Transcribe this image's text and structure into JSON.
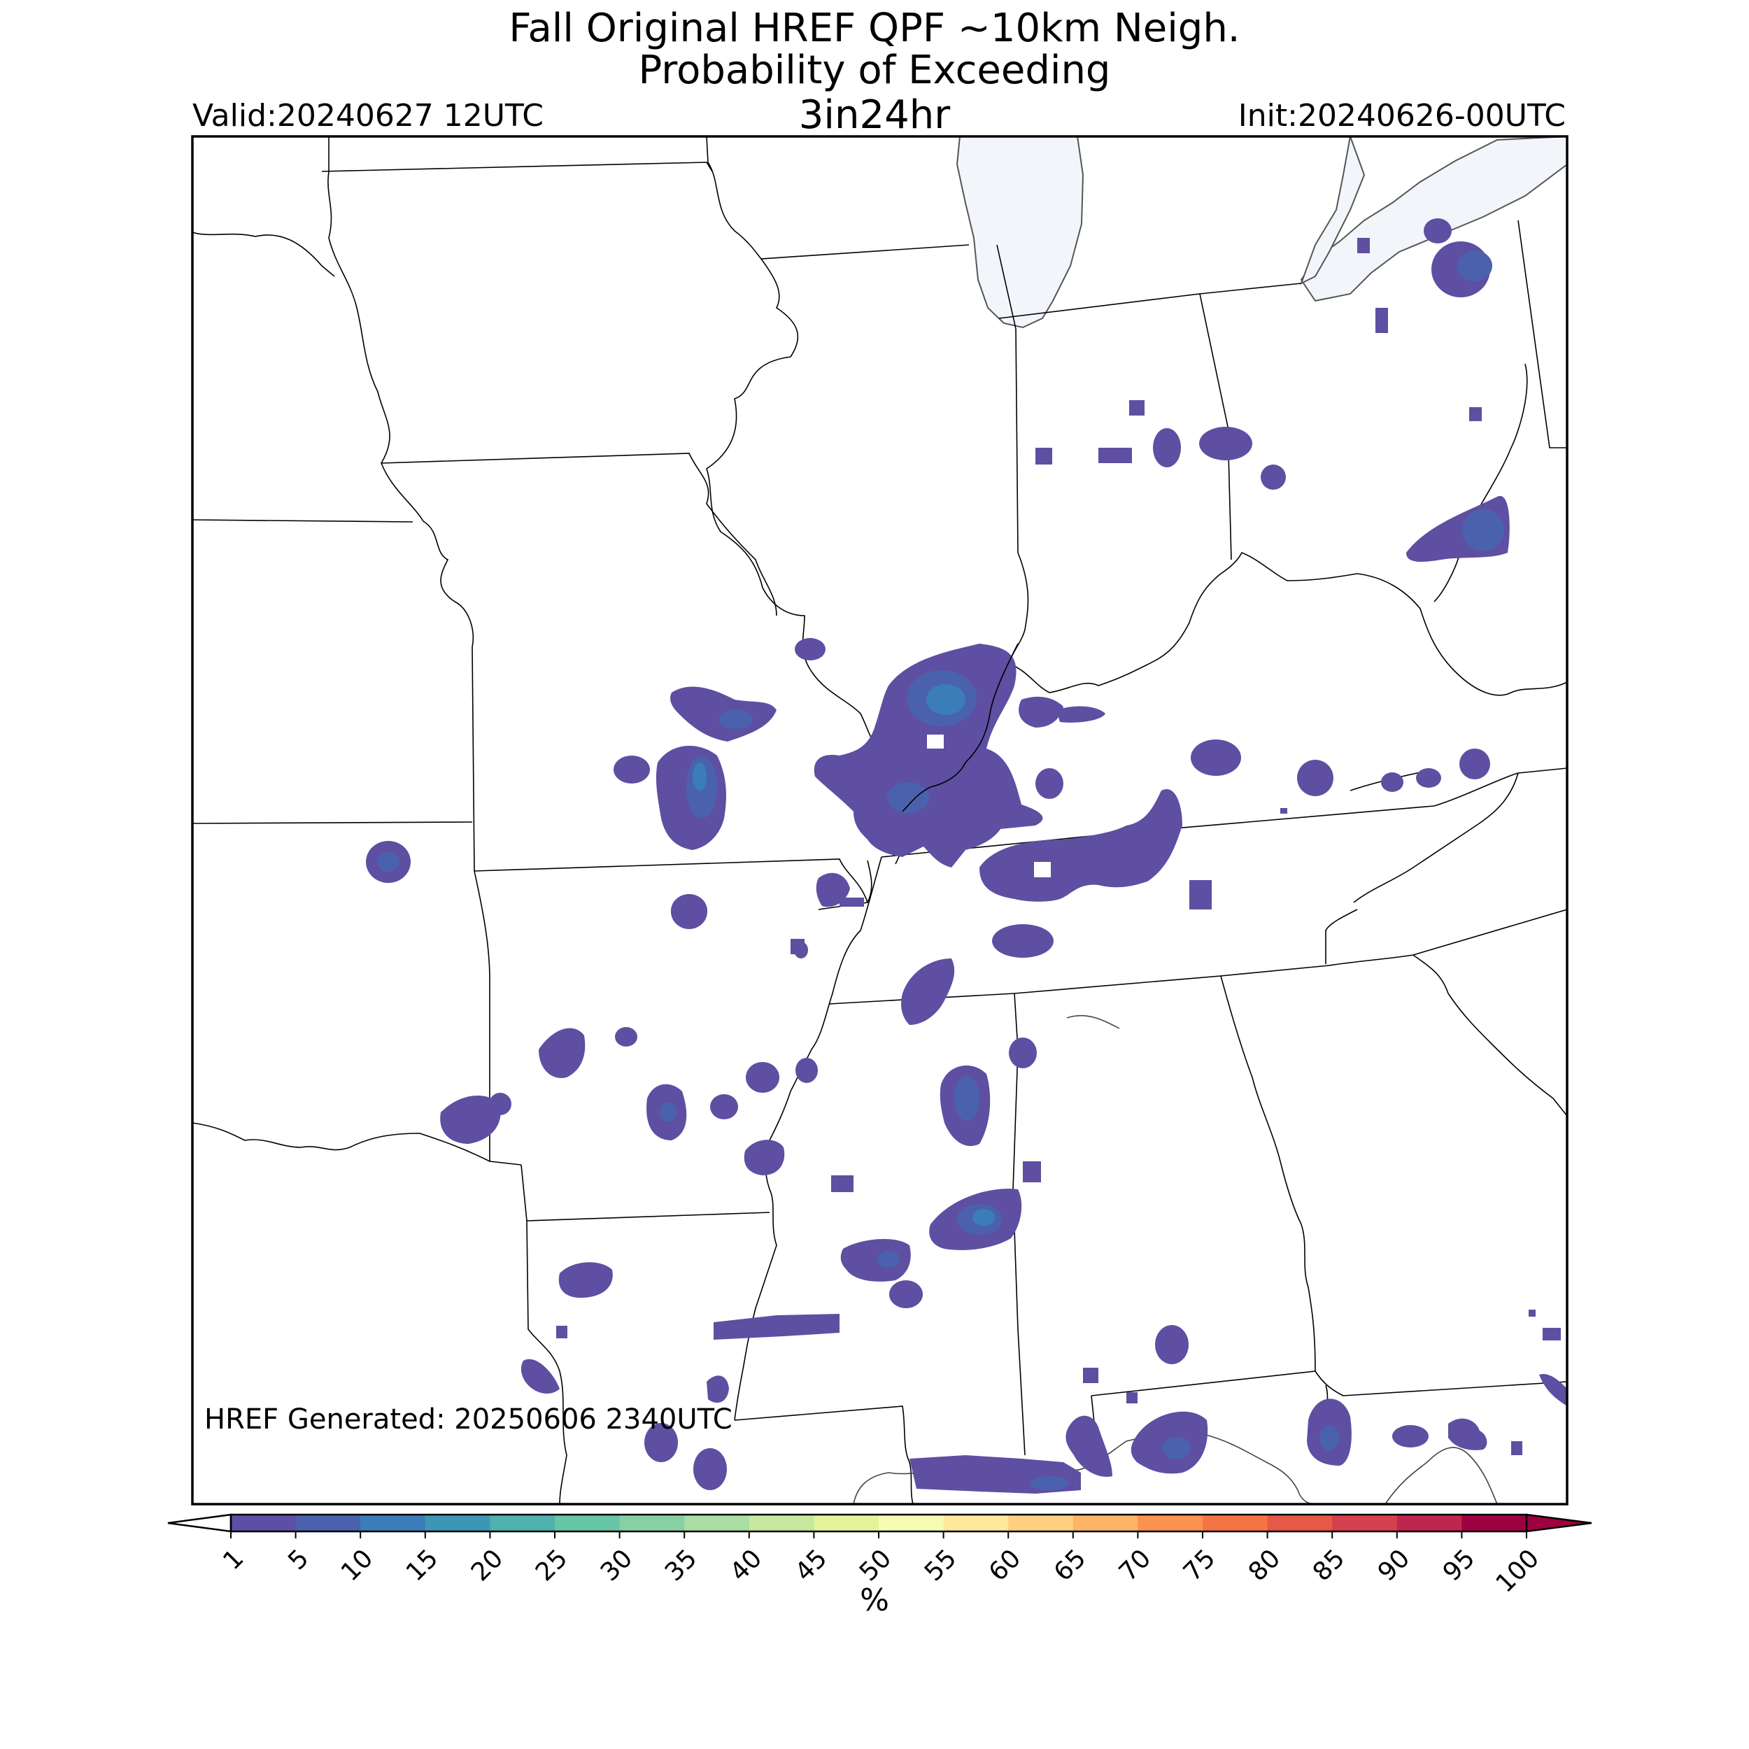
{
  "header": {
    "title_line1": "Fall Original HREF QPF ~10km Neigh.",
    "title_line2": "Probability of Exceeding",
    "title_line3": "3in24hr",
    "valid": "Valid:20240627 12UTC",
    "init": "Init:20240626-00UTC"
  },
  "footer": {
    "generated": "HREF Generated: 20250606 2340UTC"
  },
  "colorbar": {
    "ticks": [
      "1",
      "5",
      "10",
      "15",
      "20",
      "25",
      "30",
      "35",
      "40",
      "45",
      "50",
      "55",
      "60",
      "65",
      "70",
      "75",
      "80",
      "85",
      "90",
      "95",
      "100"
    ],
    "colors": [
      "#5e4fa2",
      "#4a62ad",
      "#3b7db9",
      "#3e96b7",
      "#4fb1ad",
      "#67c4a5",
      "#88d0a4",
      "#a9dda3",
      "#c7e89e",
      "#e3f397",
      "#f6fbb2",
      "#fee89a",
      "#fed080",
      "#fdb467",
      "#fb9250",
      "#f57446",
      "#e65847",
      "#d5404e",
      "#be2550",
      "#9e0142"
    ],
    "over_color": "#9e0142",
    "under_color": "#ffffff",
    "unit_label": "%"
  },
  "map": {
    "lake_color": "#f2f6fb",
    "prob_colors": {
      "p1": "#5e4fa2",
      "p5": "#4a62ad",
      "p10": "#3b7db9",
      "p15": "#3e96b7"
    }
  }
}
